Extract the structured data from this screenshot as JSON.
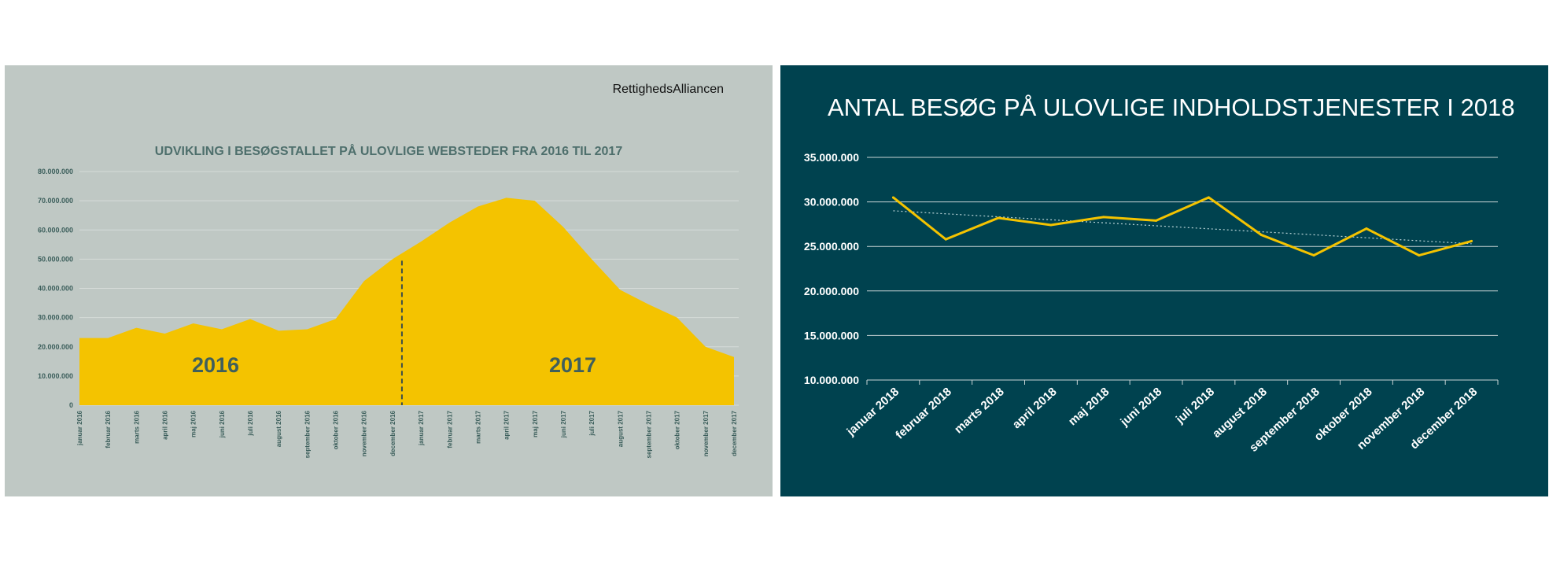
{
  "brand": "RettighedsAlliancen",
  "colors": {
    "left_bg": "#bfc8c4",
    "right_bg": "#00424f",
    "series": "#f4c300",
    "axis_text_left": "#3c5f5c"
  },
  "chart_data": [
    {
      "type": "area",
      "title": "UDVIKLING I BESØGSTALLET PÅ ULOVLIGE WEBSTEDER FRA 2016 TIL 2017",
      "categories": [
        "januar 2016",
        "februar 2016",
        "marts 2016",
        "april 2016",
        "maj 2016",
        "juni 2016",
        "juli 2016",
        "august 2016",
        "september 2016",
        "oktober 2016",
        "november 2016",
        "december 2016",
        "januar 2017",
        "februar 2017",
        "marts 2017",
        "april 2017",
        "maj 2017",
        "juni 2017",
        "juli 2017",
        "august 2017",
        "september 2017",
        "oktober 2017",
        "november 2017",
        "december 2017"
      ],
      "values": [
        23000000,
        23000000,
        26500000,
        24500000,
        28000000,
        26000000,
        29500000,
        25500000,
        26000000,
        29500000,
        42500000,
        50000000,
        56000000,
        62500000,
        68000000,
        71000000,
        70000000,
        61000000,
        50000000,
        39500000,
        34500000,
        30000000,
        20000000,
        16500000
      ],
      "ylim": [
        0,
        80000000
      ],
      "yticks": [
        "0",
        "10.000.000",
        "20.000.000",
        "30.000.000",
        "40.000.000",
        "50.000.000",
        "60.000.000",
        "70.000.000",
        "80.000.000"
      ],
      "annotations": [
        "2016",
        "2017"
      ],
      "divider_after": "december 2016",
      "grid": true
    },
    {
      "type": "line",
      "title": "ANTAL BESØG PÅ ULOVLIGE INDHOLDSTJENESTER I 2018",
      "categories": [
        "januar 2018",
        "februar 2018",
        "marts 2018",
        "april 2018",
        "maj 2018",
        "juni 2018",
        "juli 2018",
        "august 2018",
        "september 2018",
        "oktober 2018",
        "november 2018",
        "december 2018"
      ],
      "values": [
        30500000,
        25800000,
        28200000,
        27400000,
        28300000,
        27900000,
        30500000,
        26300000,
        24000000,
        27000000,
        24000000,
        25600000
      ],
      "trendline": [
        29000000,
        25300000
      ],
      "ylim": [
        10000000,
        35000000
      ],
      "yticks": [
        "10.000.000",
        "15.000.000",
        "20.000.000",
        "25.000.000",
        "30.000.000",
        "35.000.000"
      ],
      "grid": true
    }
  ]
}
